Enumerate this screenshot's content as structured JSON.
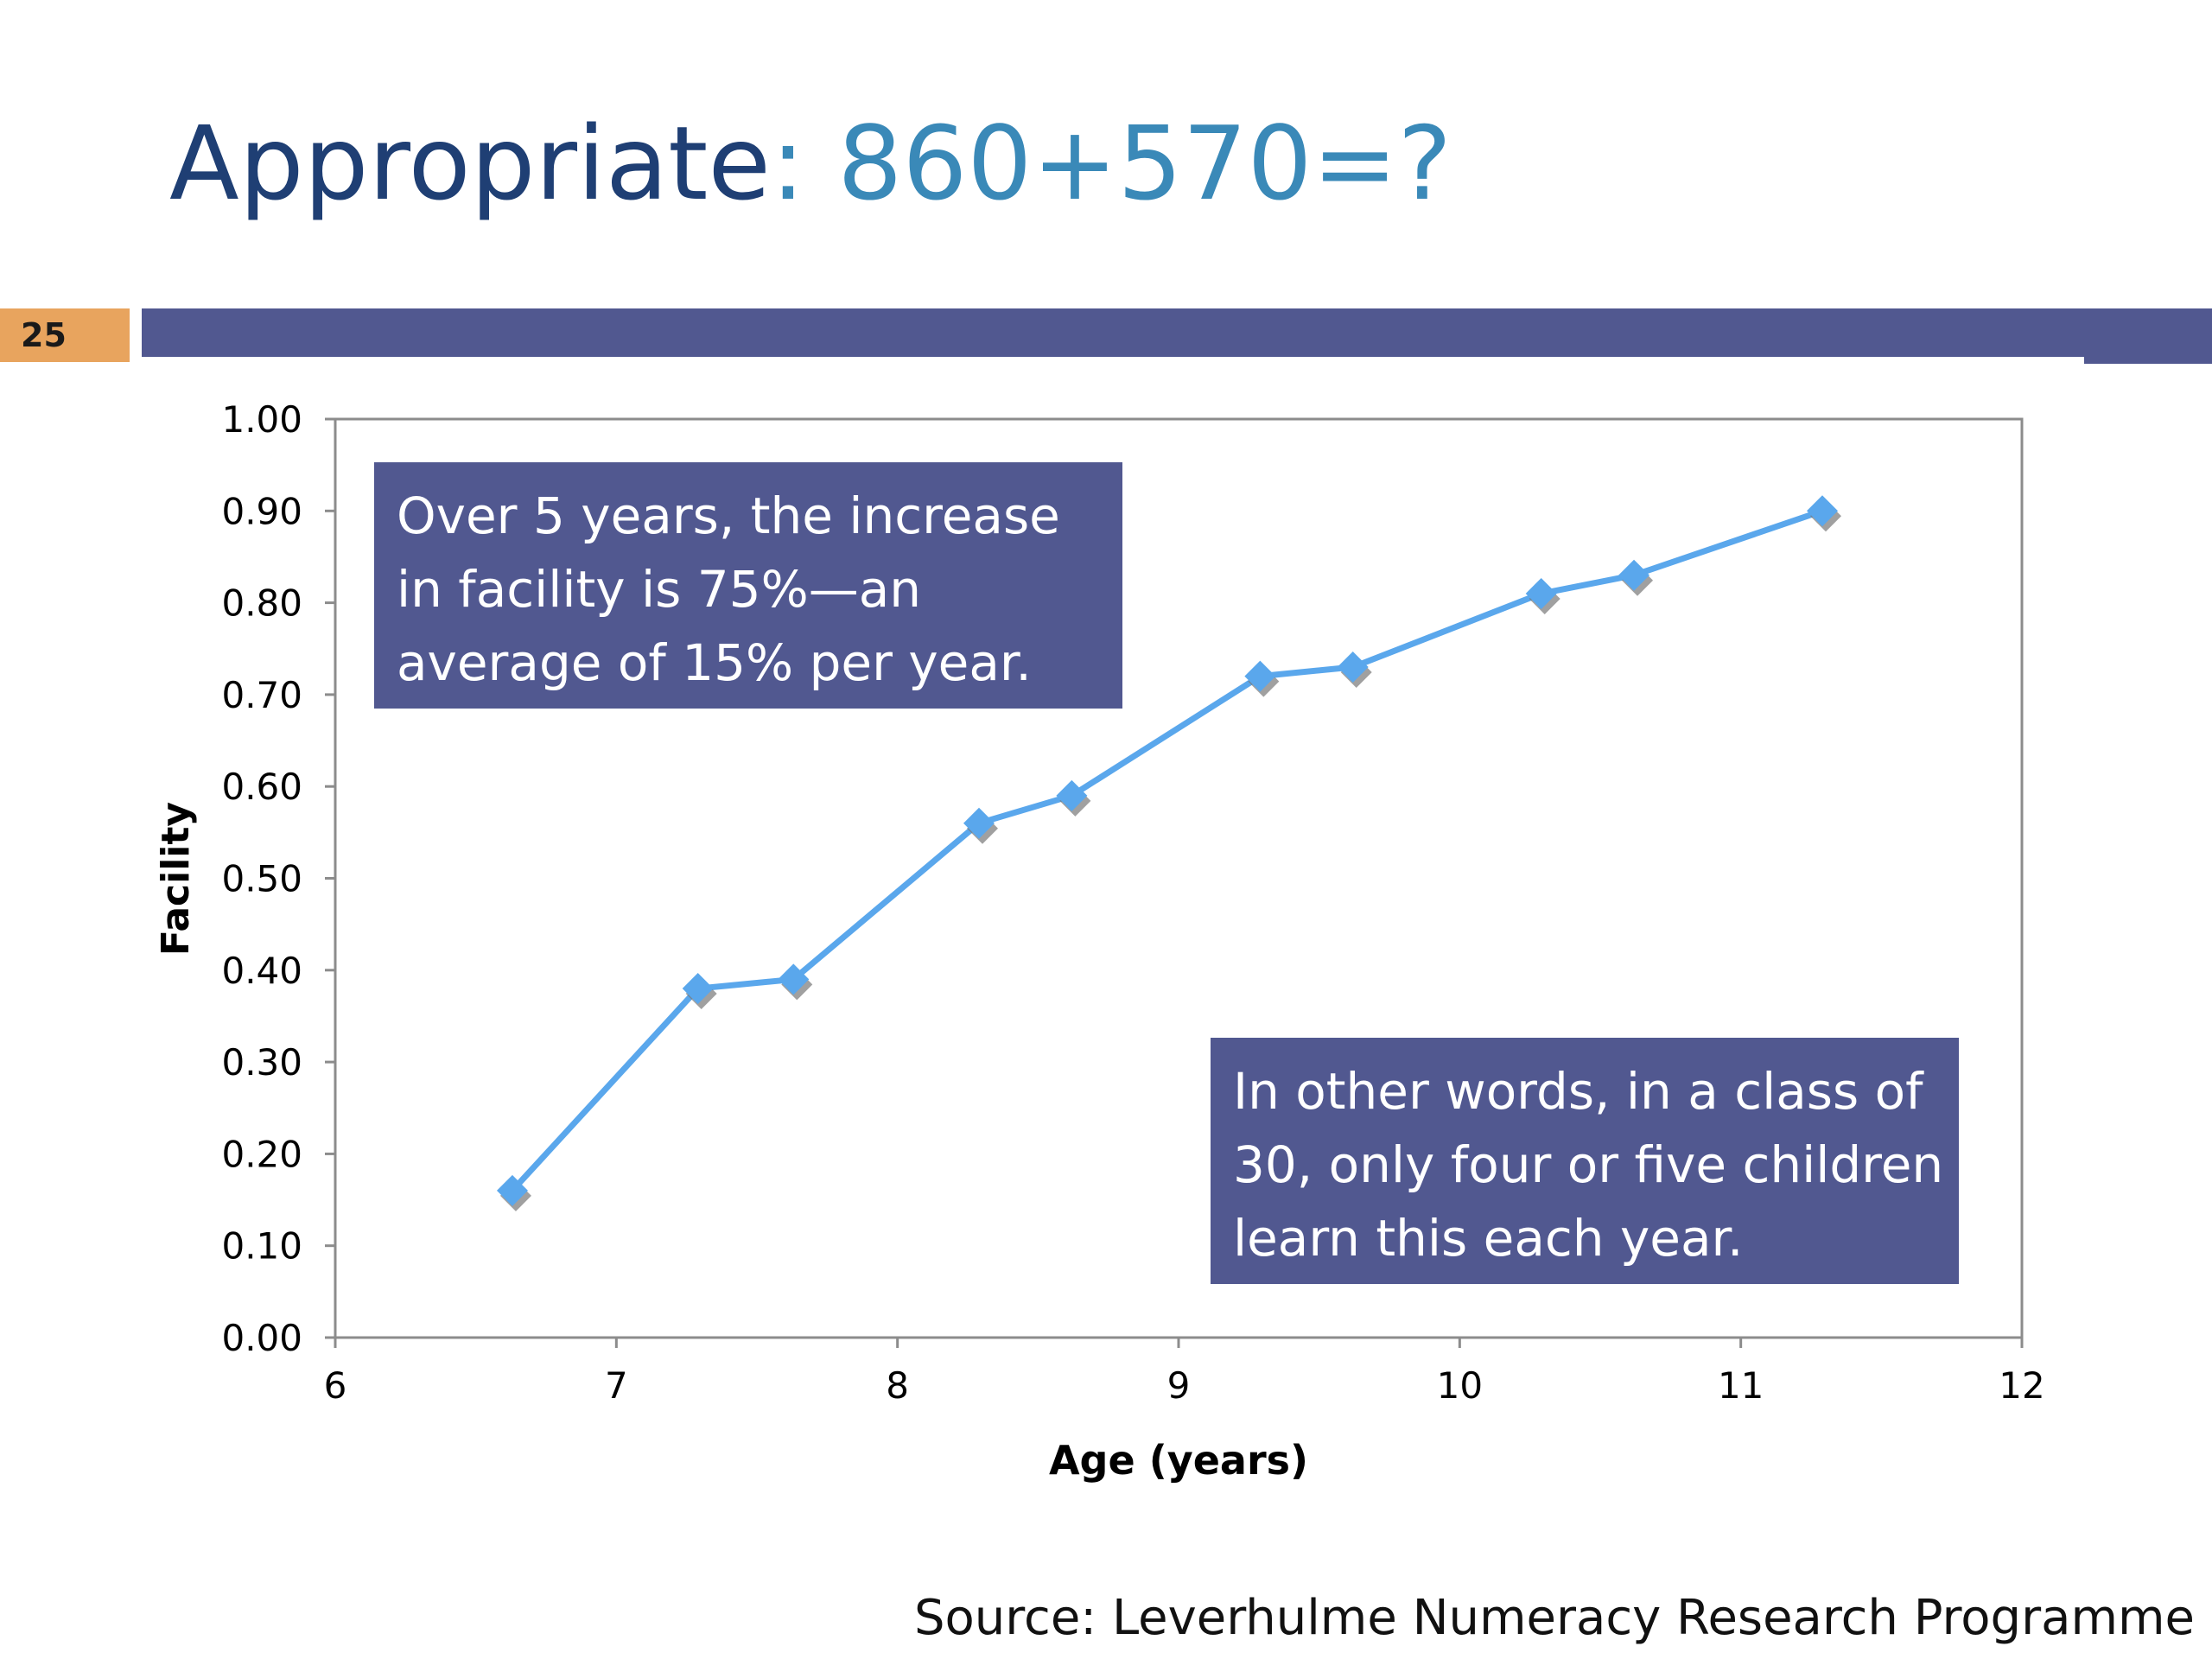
{
  "slide": {
    "title_main": "Appropriate",
    "title_expr": ": 860+570=?",
    "page_number": "25",
    "source": "Source: Leverhulme Numeracy Research Programme"
  },
  "callouts": {
    "top": [
      "Over 5 years, the increase",
      "in facility is 75%—an",
      "average of 15% per year."
    ],
    "bottom": [
      "In other words, in a class of",
      "30, only four or five children",
      "learn this each year."
    ]
  },
  "colors": {
    "accent_bar": "#515890",
    "page_badge": "#e8a45e",
    "series_line": "#5aa7ec",
    "title_dark": "#1f3f74",
    "title_light": "#3a89b8"
  },
  "chart_data": {
    "type": "line",
    "title": "",
    "xlabel": "Age (years)",
    "ylabel": "Facility",
    "xlim": [
      6,
      12
    ],
    "ylim": [
      0,
      1
    ],
    "xticks": [
      "6",
      "7",
      "8",
      "9",
      "10",
      "11",
      "12"
    ],
    "yticks": [
      "0.00",
      "0.10",
      "0.20",
      "0.30",
      "0.40",
      "0.50",
      "0.60",
      "0.70",
      "0.80",
      "0.90",
      "1.00"
    ],
    "grid": false,
    "legend": "none",
    "series": [
      {
        "marker": "diamond",
        "x": [
          6.63,
          7.29,
          7.63,
          8.29,
          8.62,
          9.29,
          9.62,
          10.29,
          10.62,
          11.29
        ],
        "y": [
          0.16,
          0.38,
          0.39,
          0.56,
          0.59,
          0.72,
          0.73,
          0.81,
          0.83,
          0.9
        ]
      }
    ]
  }
}
